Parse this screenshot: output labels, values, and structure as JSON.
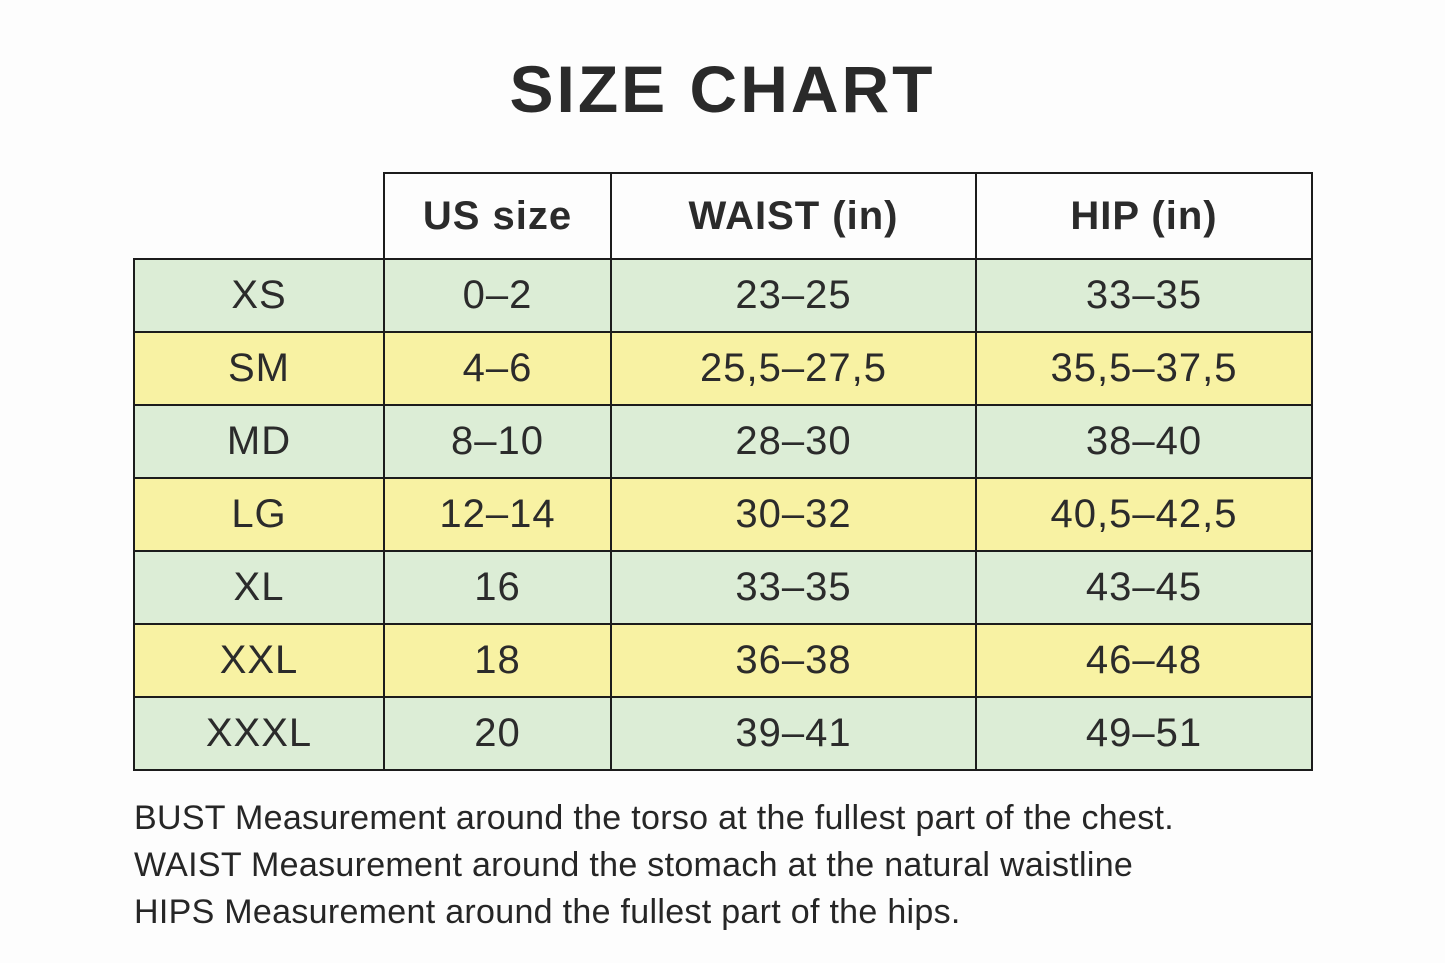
{
  "page": {
    "title": "SIZE CHART"
  },
  "table": {
    "headers": {
      "us_size": "US size",
      "waist": "WAIST (in)",
      "hip": "HIP (in)"
    },
    "rows": [
      {
        "size": "XS",
        "us": "0–2",
        "waist": "23–25",
        "hip": "33–35"
      },
      {
        "size": "SM",
        "us": "4–6",
        "waist": "25,5–27,5",
        "hip": "35,5–37,5"
      },
      {
        "size": "MD",
        "us": "8–10",
        "waist": "28–30",
        "hip": "38–40"
      },
      {
        "size": "LG",
        "us": "12–14",
        "waist": "30–32",
        "hip": "40,5–42,5"
      },
      {
        "size": "XL",
        "us": "16",
        "waist": "33–35",
        "hip": "43–45"
      },
      {
        "size": "XXL",
        "us": "18",
        "waist": "36–38",
        "hip": "46–48"
      },
      {
        "size": "XXXL",
        "us": "20",
        "waist": "39–41",
        "hip": "49–51"
      }
    ]
  },
  "notes": {
    "bust": "BUST Measurement around the torso at the fullest part of the chest.",
    "waist": "WAIST Measurement around the stomach at the natural waistline",
    "hips": "HIPS Measurement around the fullest part of the hips."
  },
  "colors": {
    "row_green": "#dcedd6",
    "row_yellow": "#f8f2a3",
    "border": "#1c1c1c",
    "text": "#2b2b2b",
    "background": "#fdfdfd"
  }
}
